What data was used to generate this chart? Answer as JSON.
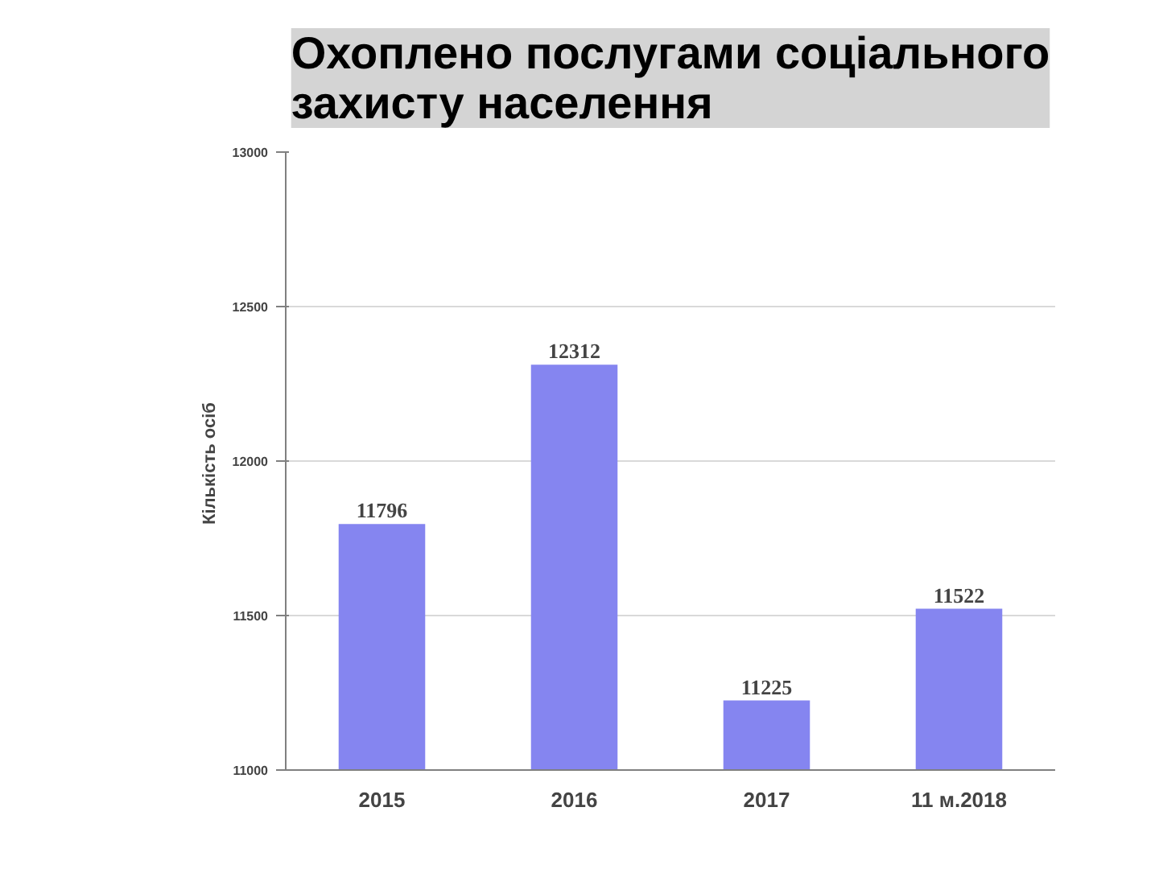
{
  "chart_data": {
    "type": "bar",
    "title": "Охоплено послугами соціального\nзахисту населення",
    "ylabel": "Кількість  осіб",
    "categories": [
      "2015",
      "2016",
      "2017",
      "11 м.2018"
    ],
    "values": [
      11796,
      12312,
      11225,
      11522
    ],
    "color": "#8585f0",
    "ylim": [
      11000,
      13000
    ],
    "yticks": [
      11000,
      11500,
      12000,
      12500,
      13000
    ],
    "grid": "y",
    "data_labels": true
  }
}
